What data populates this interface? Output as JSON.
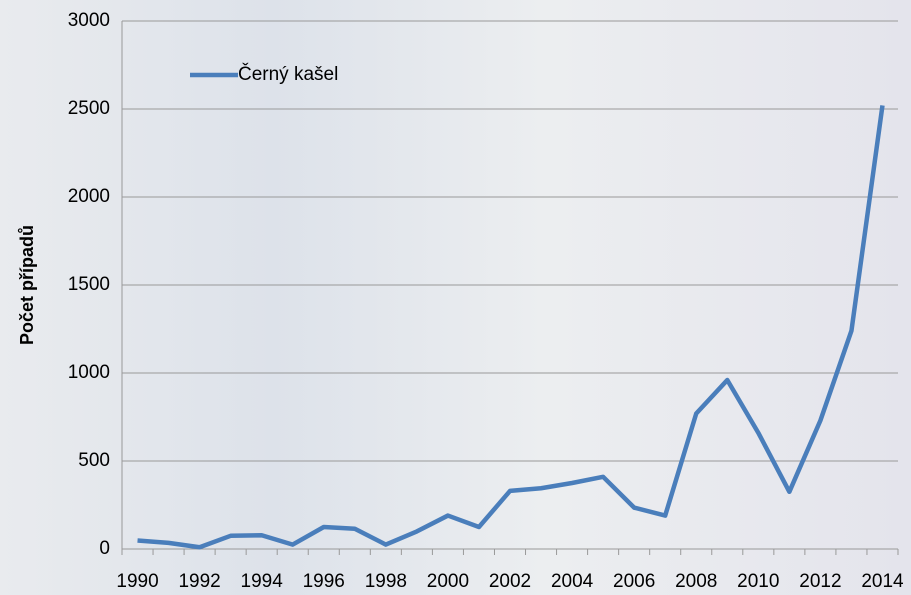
{
  "chart_data": {
    "type": "line",
    "y_label": "Počet případů",
    "categories": [
      "1990",
      null,
      "1992",
      null,
      "1994",
      null,
      "1996",
      null,
      "1998",
      null,
      "2000",
      null,
      "2002",
      null,
      "2004",
      null,
      "2006",
      null,
      "2008",
      null,
      "2010",
      null,
      "2012",
      null,
      "2014"
    ],
    "series": [
      {
        "name": "Černý kašel",
        "color": "#4a7ebb",
        "values": [
          48,
          35,
          10,
          75,
          78,
          25,
          125,
          115,
          25,
          100,
          190,
          125,
          330,
          345,
          375,
          410,
          235,
          190,
          770,
          960,
          660,
          325,
          730,
          1240,
          2520
        ]
      }
    ],
    "ylim": [
      0,
      3000
    ],
    "yticks": [
      0,
      500,
      1000,
      1500,
      2000,
      2500,
      3000
    ],
    "grid": true,
    "legend": "top-left"
  }
}
